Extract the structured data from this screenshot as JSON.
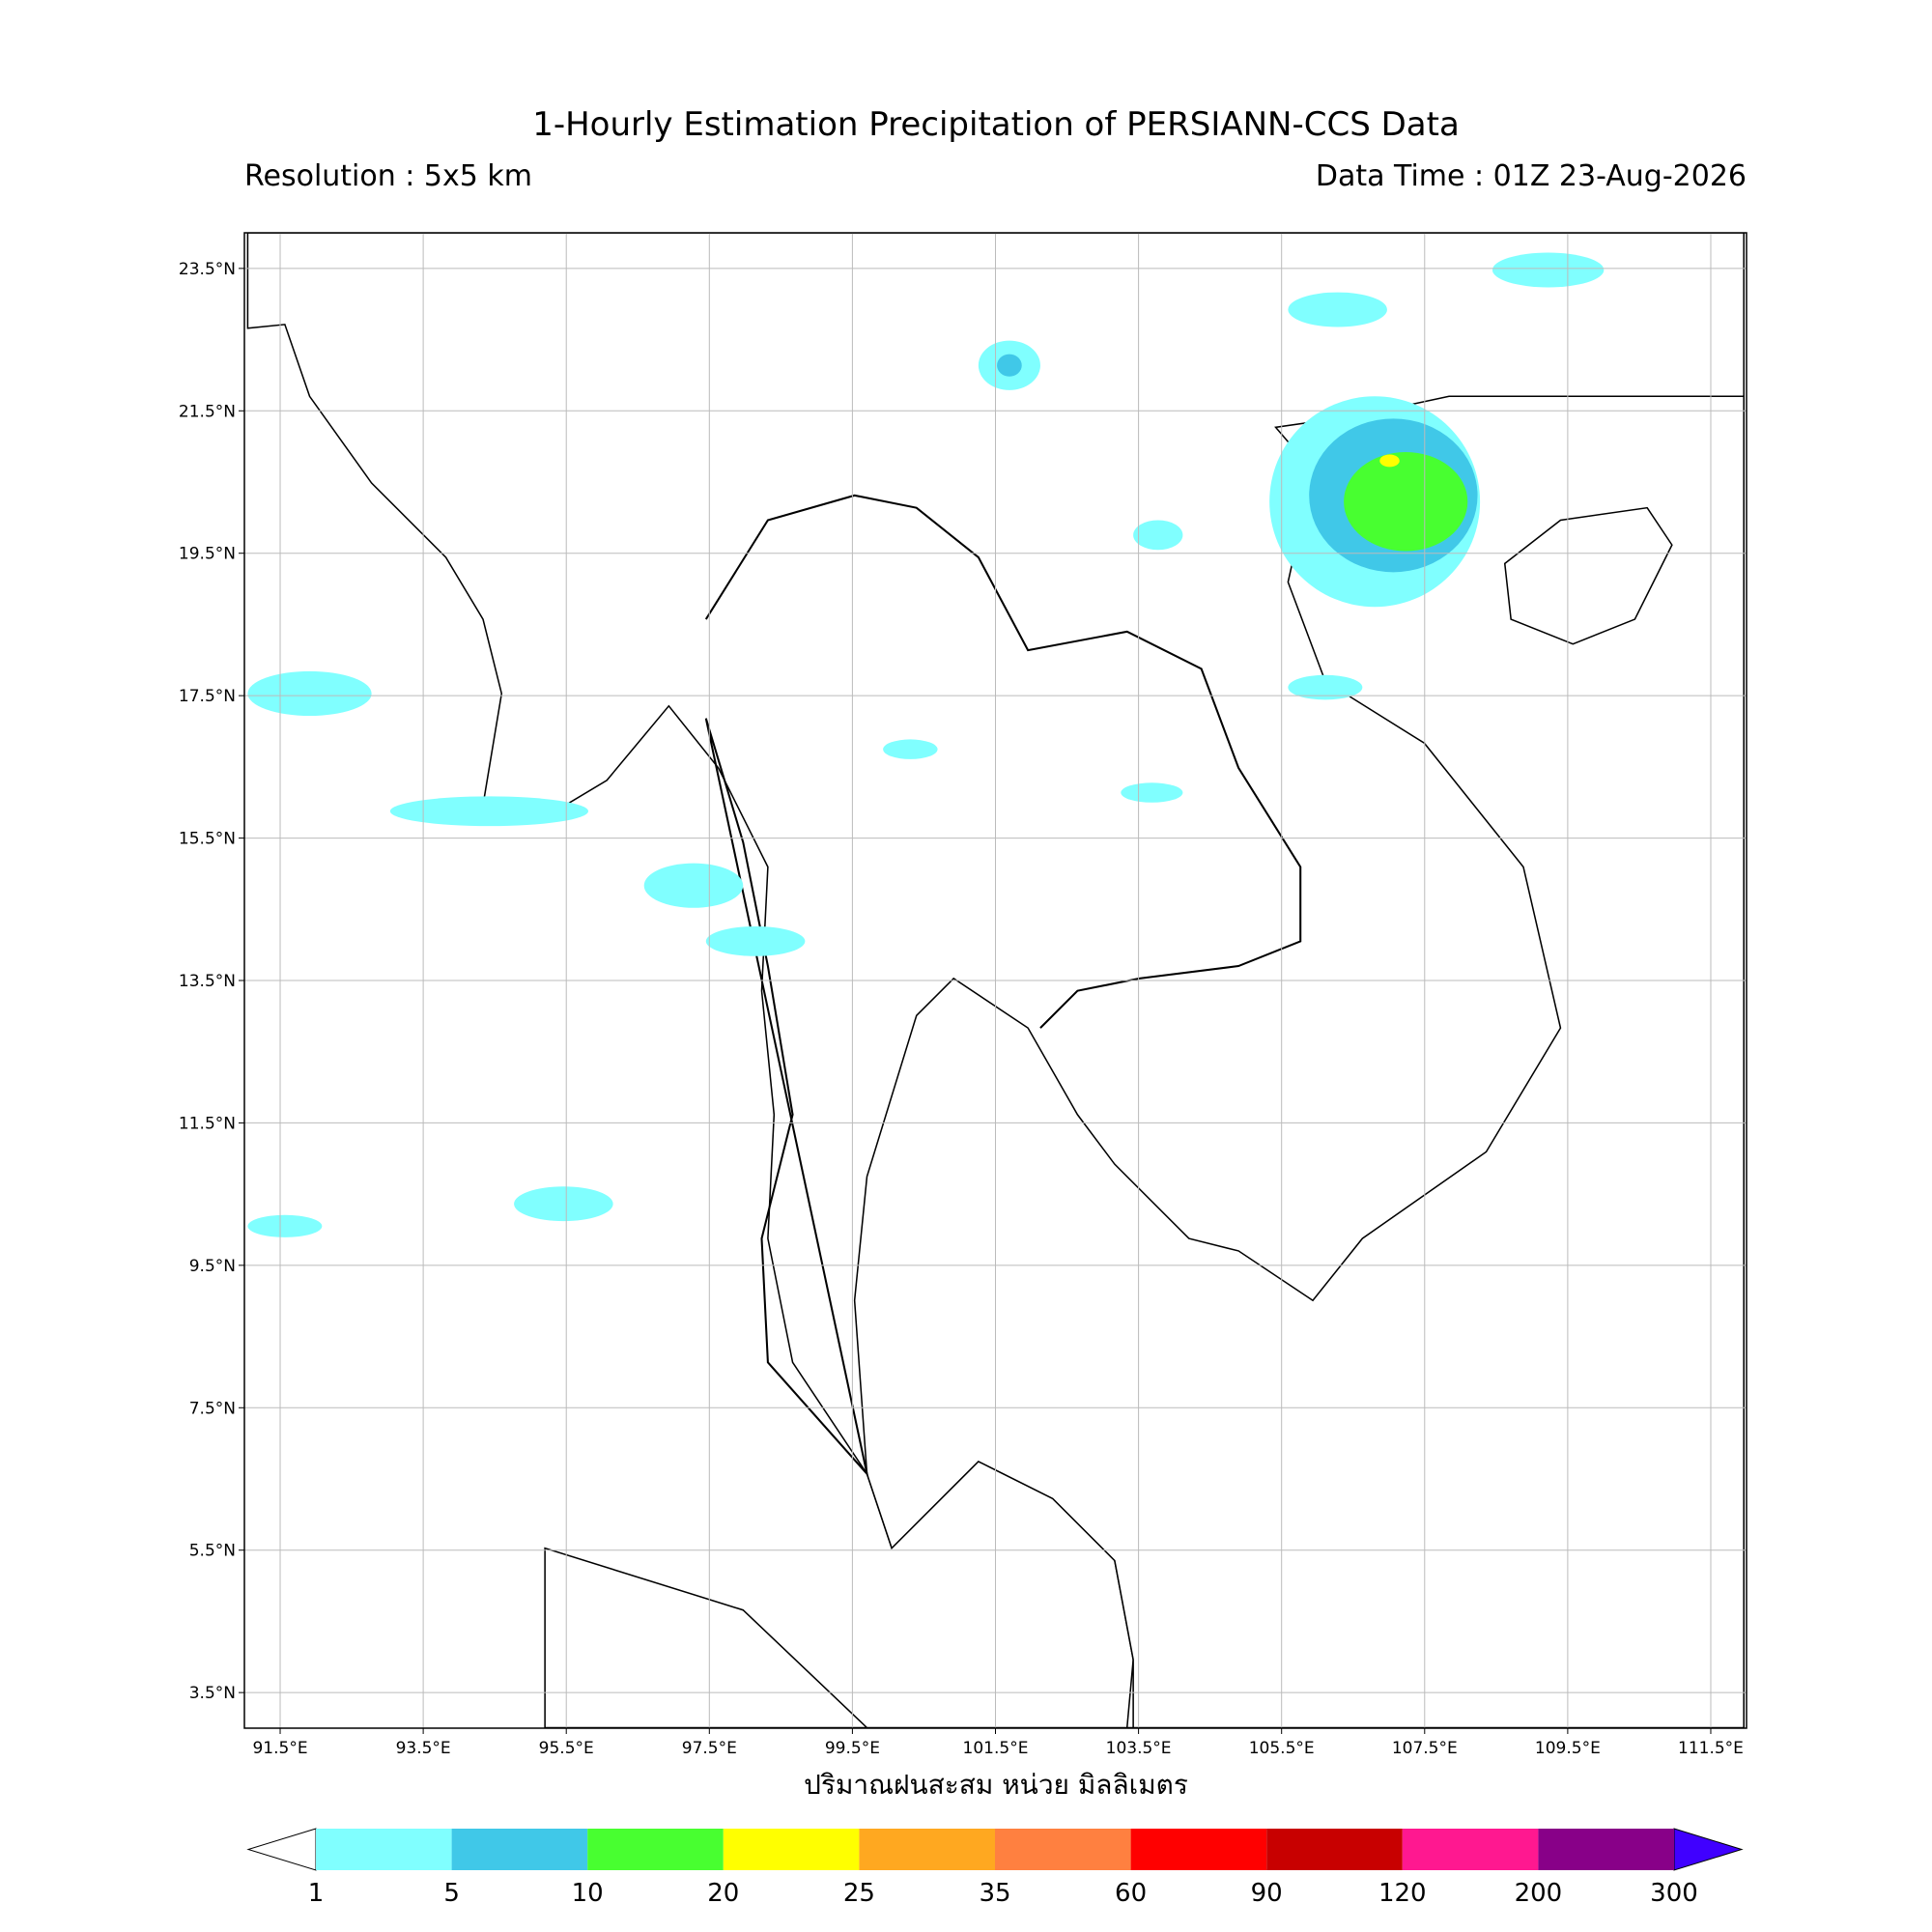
{
  "header": {
    "title": "1-Hourly Estimation Precipitation of PERSIANN-CCS Data",
    "resolution": "Resolution : 5x5 km",
    "data_time": "Data Time : 01Z 23-Aug-2026"
  },
  "map": {
    "xlim": [
      91,
      112
    ],
    "ylim": [
      3,
      24
    ],
    "xticks": [
      {
        "value": 91.5,
        "label": "91.5°E"
      },
      {
        "value": 93.5,
        "label": "93.5°E"
      },
      {
        "value": 95.5,
        "label": "95.5°E"
      },
      {
        "value": 97.5,
        "label": "97.5°E"
      },
      {
        "value": 99.5,
        "label": "99.5°E"
      },
      {
        "value": 101.5,
        "label": "101.5°E"
      },
      {
        "value": 103.5,
        "label": "103.5°E"
      },
      {
        "value": 105.5,
        "label": "105.5°E"
      },
      {
        "value": 107.5,
        "label": "107.5°E"
      },
      {
        "value": 109.5,
        "label": "109.5°E"
      },
      {
        "value": 111.5,
        "label": "111.5°E"
      }
    ],
    "yticks": [
      {
        "value": 23.5,
        "label": "23.5°N"
      },
      {
        "value": 21.5,
        "label": "21.5°N"
      },
      {
        "value": 19.5,
        "label": "19.5°N"
      },
      {
        "value": 17.5,
        "label": "17.5°N"
      },
      {
        "value": 15.5,
        "label": "15.5°N"
      },
      {
        "value": 13.5,
        "label": "13.5°N"
      },
      {
        "value": 11.5,
        "label": "11.5°N"
      },
      {
        "value": 9.5,
        "label": "9.5°N"
      },
      {
        "value": 7.5,
        "label": "7.5°N"
      },
      {
        "value": 5.5,
        "label": "5.5°N"
      },
      {
        "value": 3.5,
        "label": "3.5°N"
      }
    ],
    "grid": true
  },
  "colorbar": {
    "label": "ปริมาณฝนสะสม หน่วย มิลลิเมตร",
    "levels": [
      1,
      5,
      10,
      20,
      25,
      35,
      60,
      90,
      120,
      200,
      300
    ],
    "colors": [
      "#80ffff",
      "#40c8e8",
      "#48ff30",
      "#ffff00",
      "#ffa820",
      "#ff8040",
      "#ff0000",
      "#c80000",
      "#ff1890",
      "#880088"
    ],
    "over_color": "#4000ff",
    "under_color": "#ffffff"
  }
}
